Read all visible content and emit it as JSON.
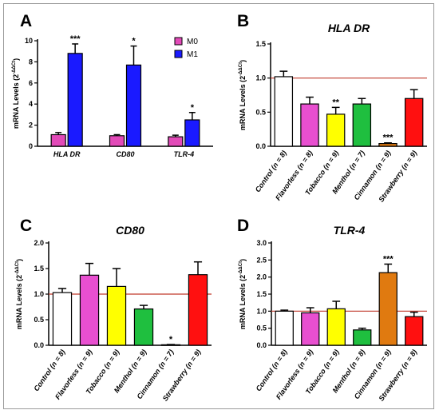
{
  "chart_data": [
    {
      "panel": "A",
      "type": "bar",
      "ylabel": "mRNA Levels (2",
      "ylabel_sup": "-ΔΔCt",
      "ylim": [
        0,
        10
      ],
      "yticks": [
        "0",
        "2",
        "4",
        "6",
        "8",
        "10"
      ],
      "categories": [
        "HLA DR",
        "CD80",
        "TLR-4"
      ],
      "series": [
        {
          "name": "M0",
          "color": "#e24ab8",
          "values": [
            1.1,
            1.0,
            0.9
          ],
          "errors": [
            0.2,
            0.1,
            0.15
          ]
        },
        {
          "name": "M1",
          "color": "#1a1aff",
          "values": [
            8.8,
            7.7,
            2.5
          ],
          "errors": [
            0.9,
            1.8,
            0.7
          ]
        }
      ],
      "annotations": [
        "***",
        "*",
        "*"
      ],
      "legend": "top-right"
    },
    {
      "panel": "B",
      "type": "bar",
      "title": "HLA DR",
      "ylabel": "mRNA Levels (2",
      "ylabel_sup": "-ΔΔCt",
      "ylim": [
        0,
        1.5
      ],
      "yticks": [
        "0.0",
        "0.5",
        "1.0",
        "1.5"
      ],
      "reference_line": 1.0,
      "categories": [
        "Control (n = 8)",
        "Flavorless (n = 8)",
        "Tobacco (n = 9)",
        "Menthol (n = 7)",
        "Cinnamon (n = 9)",
        "Strawberry (n = 9)"
      ],
      "values": [
        1.02,
        0.62,
        0.47,
        0.62,
        0.04,
        0.7
      ],
      "errors": [
        0.08,
        0.1,
        0.1,
        0.08,
        0.01,
        0.13
      ],
      "colors": [
        "#ffffff",
        "#e84fd0",
        "#ffff00",
        "#1fbf3f",
        "#e07a10",
        "#ff1010"
      ],
      "annotations": [
        "",
        "",
        "**",
        "",
        "***",
        ""
      ]
    },
    {
      "panel": "C",
      "type": "bar",
      "title": "CD80",
      "ylabel": "mRNA Levels (2",
      "ylabel_sup": "-ΔΔCt",
      "ylim": [
        0,
        2.0
      ],
      "yticks": [
        "0.0",
        "0.5",
        "1.0",
        "1.5",
        "2.0"
      ],
      "reference_line": 1.0,
      "categories": [
        "Control (n = 8)",
        "Flavorless (n = 9)",
        "Tobacco (n = 9)",
        "Menthol (n = 9)",
        "Cinnamon (n = 7)",
        "Strawberry (n = 9)"
      ],
      "values": [
        1.03,
        1.37,
        1.15,
        0.71,
        0.01,
        1.38
      ],
      "errors": [
        0.08,
        0.23,
        0.35,
        0.07,
        0.005,
        0.25
      ],
      "colors": [
        "#ffffff",
        "#e84fd0",
        "#ffff00",
        "#1fbf3f",
        "#e07a10",
        "#ff1010"
      ],
      "annotations": [
        "",
        "",
        "",
        "",
        "*",
        ""
      ]
    },
    {
      "panel": "D",
      "type": "bar",
      "title": "TLR-4",
      "ylabel": "mRNA Levels (2",
      "ylabel_sup": "-ΔΔCt",
      "ylim": [
        0,
        3.0
      ],
      "yticks": [
        "0.0",
        "0.5",
        "1.0",
        "1.5",
        "2.0",
        "2.5",
        "3.0"
      ],
      "reference_line": 1.0,
      "categories": [
        "Control (n = 8)",
        "Flavorless (n = 9)",
        "Tobacco (n = 9)",
        "Menthol (n = 8)",
        "Cinnamon (n = 9)",
        "Strawberry (n = 8)"
      ],
      "values": [
        1.0,
        0.95,
        1.07,
        0.45,
        2.13,
        0.84
      ],
      "errors": [
        0.03,
        0.15,
        0.22,
        0.05,
        0.25,
        0.13
      ],
      "colors": [
        "#ffffff",
        "#e84fd0",
        "#ffff00",
        "#1fbf3f",
        "#e07a10",
        "#ff1010"
      ],
      "annotations": [
        "",
        "",
        "",
        "",
        "***",
        ""
      ]
    }
  ]
}
